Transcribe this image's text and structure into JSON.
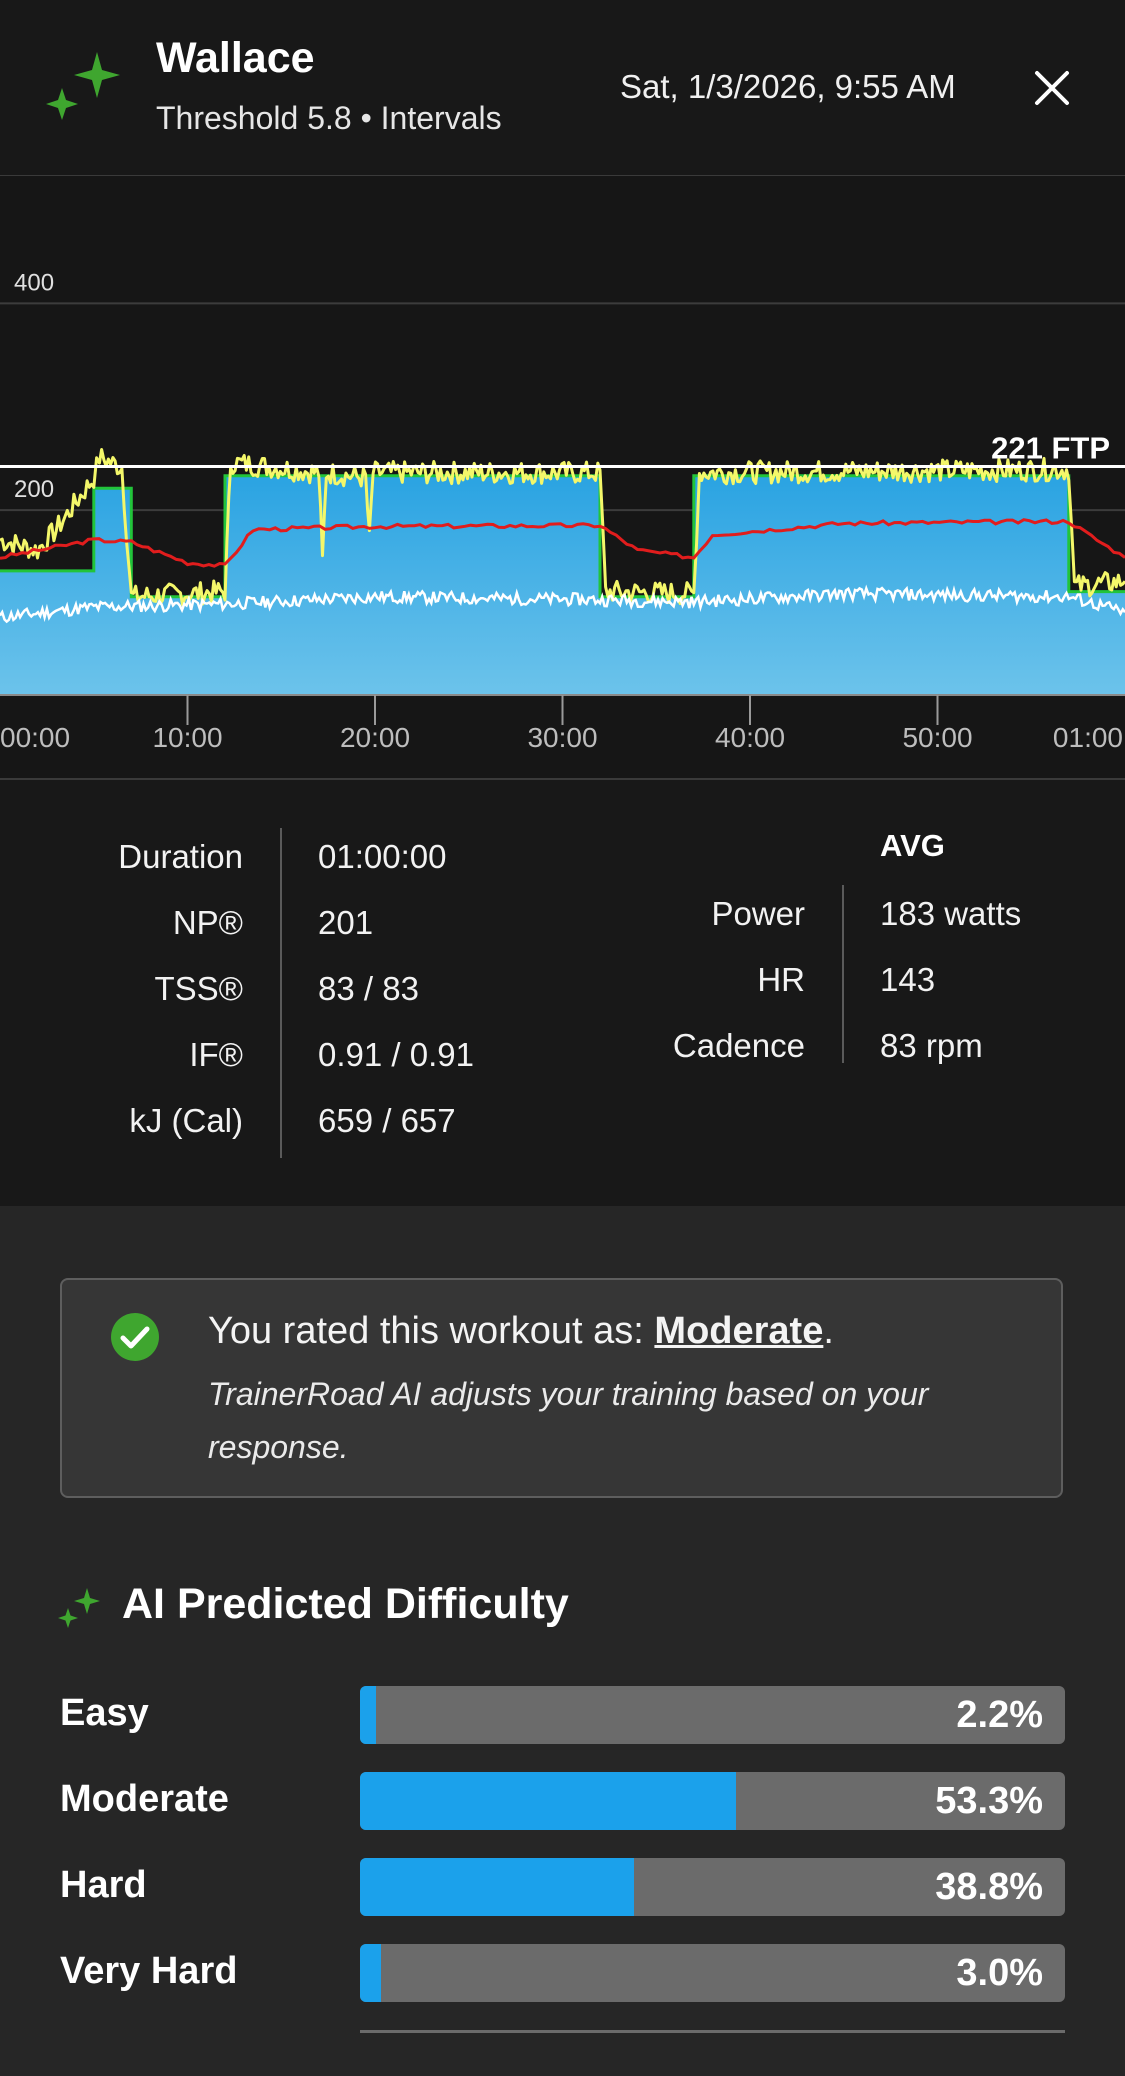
{
  "header": {
    "title": "Wallace",
    "subtitle": "Threshold 5.8 • Intervals",
    "datetime": "Sat, 1/3/2026, 9:55 AM",
    "logo_icon": "sparkle-icon",
    "close_icon": "close-icon"
  },
  "chart_data": {
    "type": "area",
    "y_ticks": [
      "400",
      "200"
    ],
    "ylim": [
      0,
      440
    ],
    "ftp": 221,
    "ftp_label": "221 FTP",
    "x_ticks": [
      "00:00",
      "10:00",
      "20:00",
      "30:00",
      "40:00",
      "50:00",
      "01:00"
    ],
    "xlim_minutes": [
      0,
      60
    ],
    "series": [
      {
        "kind": "target-area",
        "color": "#2fa8e6",
        "x": [
          0,
          5,
          5,
          7,
          7,
          12,
          12,
          32,
          32,
          37,
          37,
          57,
          57,
          60
        ],
        "values": [
          120,
          120,
          200,
          200,
          95,
          95,
          212,
          212,
          95,
          95,
          212,
          212,
          100,
          100
        ]
      },
      {
        "kind": "power",
        "color": "#f4f76a",
        "x": [
          0,
          2,
          3,
          5,
          5.3,
          6.5,
          7,
          12,
          12.3,
          17,
          17.2,
          17.4,
          19.5,
          19.7,
          19.9,
          32,
          32.3,
          37,
          37.3,
          57,
          57.3,
          60
        ],
        "values": [
          150,
          140,
          160,
          210,
          230,
          220,
          95,
          100,
          225,
          215,
          130,
          215,
          210,
          150,
          215,
          215,
          100,
          98,
          215,
          218,
          105,
          110
        ]
      },
      {
        "kind": "heart-rate",
        "color": "#e11d1d",
        "x": [
          0,
          5,
          7,
          10,
          12,
          13.5,
          20,
          32,
          34,
          37,
          38,
          45,
          57,
          58.5,
          60
        ],
        "values": [
          133,
          150,
          148,
          128,
          125,
          160,
          163,
          164,
          140,
          133,
          155,
          166,
          168,
          150,
          133
        ]
      },
      {
        "kind": "cadence",
        "color": "#ffffff",
        "x": [
          0,
          5,
          12,
          20,
          32,
          37,
          45,
          57,
          60
        ],
        "values": [
          75,
          85,
          88,
          95,
          92,
          90,
          98,
          95,
          80
        ]
      }
    ]
  },
  "stats": {
    "rows": [
      {
        "label": "Duration",
        "value": "01:00:00"
      },
      {
        "label": "NP®",
        "value": "201"
      },
      {
        "label": "TSS®",
        "value": "83 / 83"
      },
      {
        "label": "IF®",
        "value": "0.91 / 0.91"
      },
      {
        "label": "kJ (Cal)",
        "value": "659 / 657"
      }
    ],
    "avg_title": "AVG",
    "avg_rows": [
      {
        "label": "Power",
        "value": "183 watts"
      },
      {
        "label": "HR",
        "value": "143"
      },
      {
        "label": "Cadence",
        "value": "83 rpm"
      }
    ]
  },
  "rating": {
    "prefix": "You rated this workout as: ",
    "value": "Moderate",
    "suffix": ".",
    "note": "TrainerRoad AI adjusts your training based on your response.",
    "icon": "check-circle-icon"
  },
  "difficulty": {
    "title": "AI Predicted Difficulty",
    "icon": "sparkle-icon",
    "items": [
      {
        "label": "Easy",
        "value": "2.2%",
        "fraction": 0.022
      },
      {
        "label": "Moderate",
        "value": "53.3%",
        "fraction": 0.533
      },
      {
        "label": "Hard",
        "value": "38.8%",
        "fraction": 0.388
      },
      {
        "label": "Very Hard",
        "value": "3.0%",
        "fraction": 0.03
      }
    ]
  },
  "colors": {
    "accent_green": "#3fa62f",
    "bar_blue": "#1ba1eb"
  }
}
